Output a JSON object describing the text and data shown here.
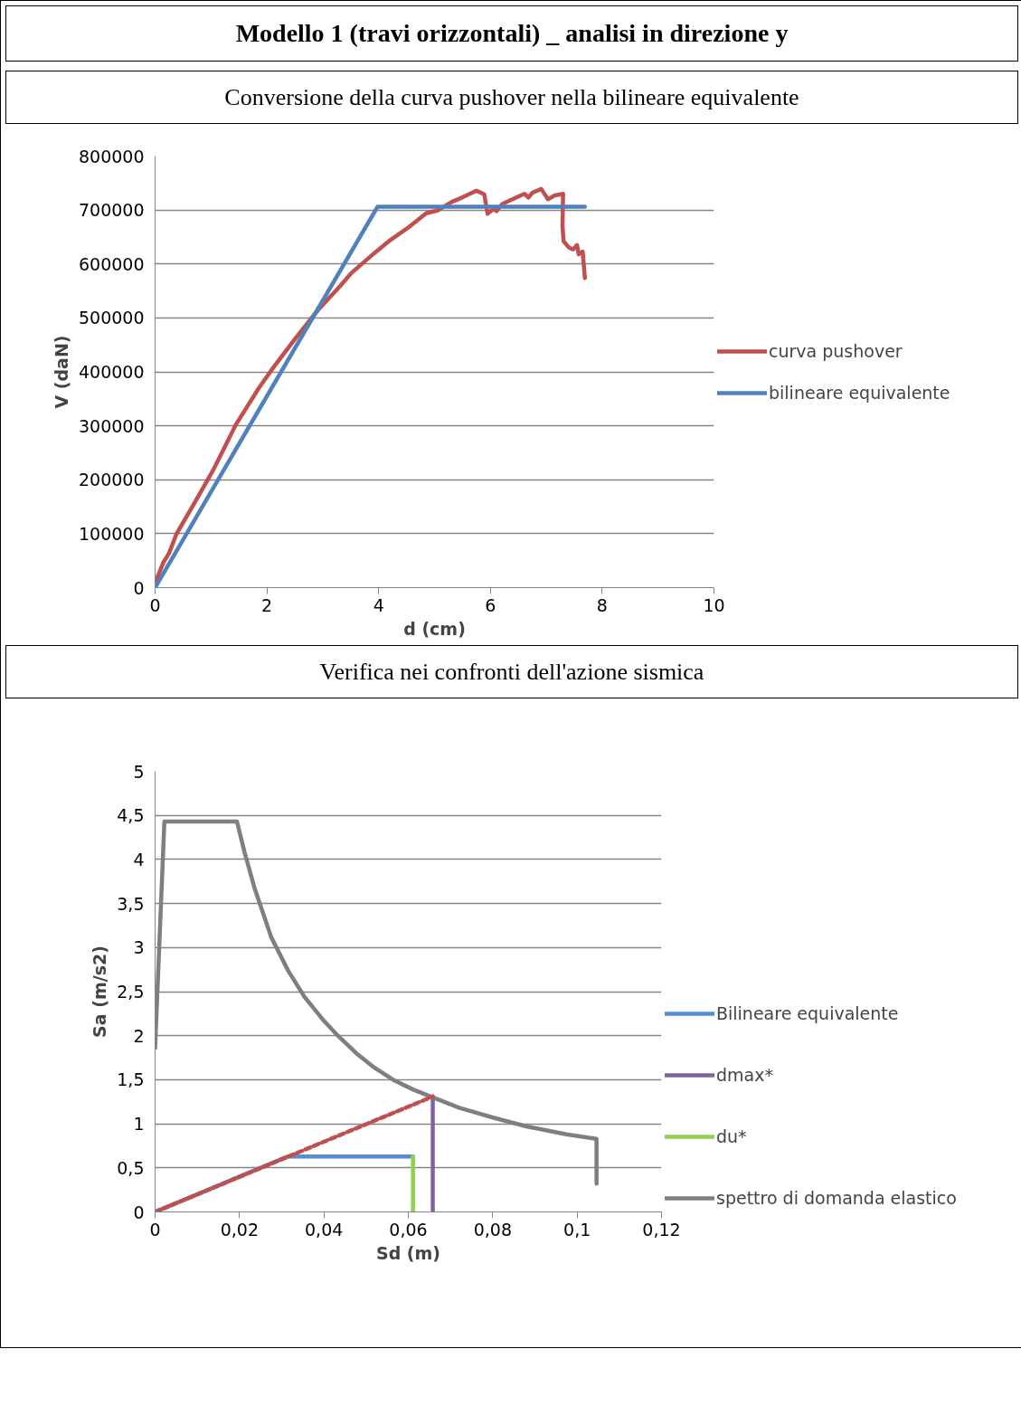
{
  "chart_data": [
    {
      "type": "line",
      "title": "Modello 1 (travi orizzontali) _ analisi in direzione y",
      "subtitle": "Conversione della curva pushover nella bilineare equivalente",
      "xlabel": "d (cm)",
      "ylabel": "V (daN)",
      "xlim": [
        0,
        10
      ],
      "xticks": [
        0,
        2,
        4,
        6,
        8,
        10
      ],
      "ylim": [
        0,
        800000
      ],
      "yticks": [
        0,
        100000,
        200000,
        300000,
        400000,
        500000,
        600000,
        700000,
        800000
      ],
      "grid": "y",
      "legend": "right",
      "marker": "none",
      "series": [
        {
          "name": "curva pushover",
          "color": "#c0504d",
          "x": [
            0.0,
            0.15,
            0.25,
            0.38,
            0.71,
            1.05,
            1.45,
            1.85,
            2.08,
            2.51,
            2.91,
            3.31,
            3.51,
            3.91,
            4.18,
            4.51,
            4.85,
            5.05,
            5.31,
            5.51,
            5.75,
            5.89,
            5.95,
            6.05,
            6.11,
            6.21,
            6.48,
            6.61,
            6.68,
            6.75,
            6.91,
            7.03,
            7.15,
            7.3,
            7.29,
            7.31,
            7.41,
            7.48,
            7.55,
            7.58,
            7.65,
            7.69
          ],
          "values": [
            9000,
            47000,
            64000,
            99000,
            158000,
            220000,
            303000,
            369000,
            403000,
            462000,
            514000,
            559000,
            583000,
            619000,
            642000,
            666000,
            694000,
            699000,
            715000,
            724000,
            736000,
            729000,
            693000,
            702000,
            698000,
            711000,
            724000,
            730000,
            723000,
            732000,
            739000,
            720000,
            727000,
            730000,
            670000,
            642000,
            630000,
            627000,
            635000,
            618000,
            623000,
            574000
          ]
        },
        {
          "name": "bilineare equivalente",
          "color": "#4f81bd",
          "x": [
            0,
            3.98,
            7.69
          ],
          "values": [
            0,
            706000,
            706000
          ]
        }
      ]
    },
    {
      "type": "line",
      "title": "Verifica nei confronti dell'azione sismica",
      "xlabel": "Sd (m)",
      "ylabel": "Sa (m/s2)",
      "xlim": [
        0,
        0.12
      ],
      "xticks": [
        0,
        {
          "value": 0.02,
          "label": "0,02"
        },
        {
          "value": 0.04,
          "label": "0,04"
        },
        {
          "value": 0.06,
          "label": "0,06"
        },
        {
          "value": 0.08,
          "label": "0,08"
        },
        {
          "value": 0.1,
          "label": "0,1"
        },
        {
          "value": 0.12,
          "label": "0,12"
        }
      ],
      "ylim": [
        0,
        5
      ],
      "yticks": [
        0,
        {
          "value": 0.5,
          "label": "0,5"
        },
        1,
        {
          "value": 1.5,
          "label": "1,5"
        },
        2,
        {
          "value": 2.5,
          "label": "2,5"
        },
        3,
        {
          "value": 3.5,
          "label": "3,5"
        },
        4,
        {
          "value": 4.5,
          "label": "4,5"
        },
        5
      ],
      "grid": "y",
      "legend": "right",
      "marker": "none",
      "series": [
        {
          "name": "Bilineare equivalente",
          "color": "#558ed5",
          "x": [
            0,
            0.0315,
            0.0611
          ],
          "values": [
            0,
            0.63,
            0.63
          ]
        },
        {
          "name": "dmax*",
          "color": "#8064a2",
          "x": [
            0.0658,
            0.0658
          ],
          "values": [
            1.31,
            0
          ]
        },
        {
          "name": "du*",
          "color": "#92d050",
          "x": [
            0.0611,
            0.0611
          ],
          "values": [
            0.63,
            0
          ]
        },
        {
          "name": "spettro di domanda elastico",
          "color": "#7f7f7f",
          "x": [
            0,
            0.0022,
            0.0194,
            0.0212,
            0.0236,
            0.0275,
            0.0315,
            0.0354,
            0.0398,
            0.0433,
            0.0477,
            0.0516,
            0.0564,
            0.0611,
            0.0658,
            0.0722,
            0.0801,
            0.088,
            0.0975,
            0.1046,
            0.1046
          ],
          "values": [
            1.86,
            4.43,
            4.43,
            4.08,
            3.67,
            3.12,
            2.74,
            2.44,
            2.18,
            2.0,
            1.8,
            1.65,
            1.5,
            1.39,
            1.3,
            1.18,
            1.07,
            0.97,
            0.88,
            0.83,
            0.32
          ]
        },
        {
          "color": "#c0504d",
          "line_style": "dashed",
          "x": [
            0,
            0.0658
          ],
          "values": [
            0,
            1.31
          ]
        }
      ]
    }
  ]
}
